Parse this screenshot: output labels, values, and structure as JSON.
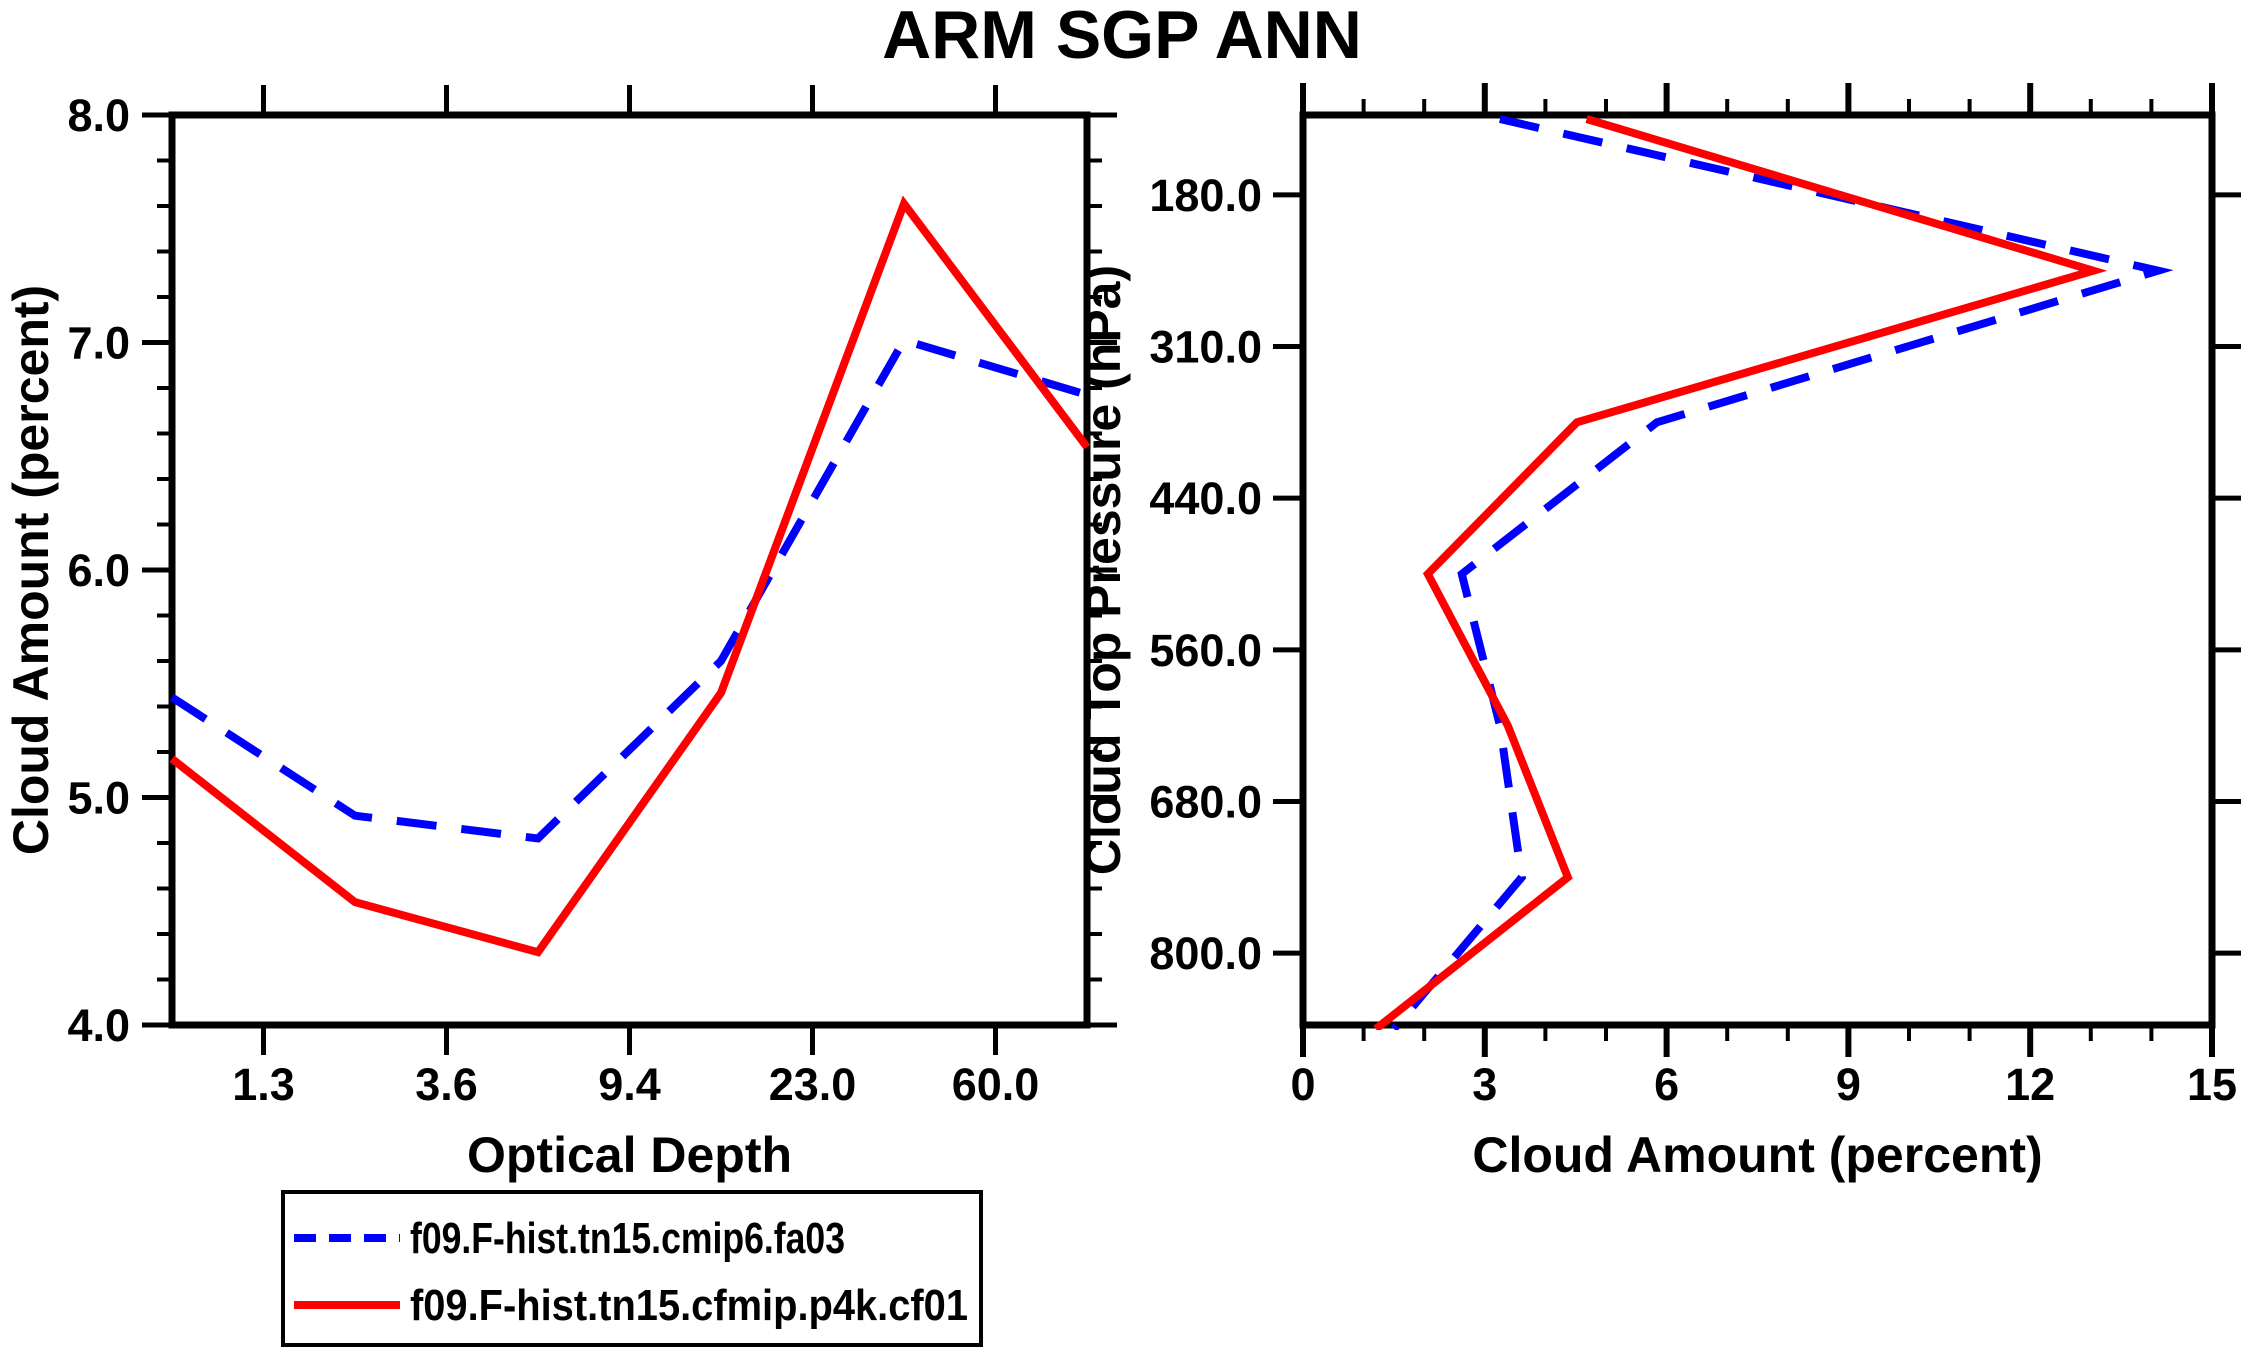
{
  "title": "ARM SGP ANN",
  "colors": {
    "series_blue": "#0000ff",
    "series_red": "#ff0000",
    "axis": "#000000",
    "background": "#ffffff"
  },
  "legend": {
    "entries": [
      {
        "label": "f09.F-hist.tn15.cmip6.fa03",
        "color": "#0000ff",
        "line_style": "dashed"
      },
      {
        "label": "f09.F-hist.tn15.cfmip.p4k.cf01",
        "color": "#ff0000",
        "line_style": "solid"
      }
    ]
  },
  "chart_data": [
    {
      "type": "line",
      "panel": "left",
      "title": "",
      "xlabel": "Optical Depth",
      "ylabel": "Cloud Amount (percent)",
      "x_axis_kind": "equally-spaced bin centers, ticks at bin boundaries",
      "x_boundary_labels": [
        "1.3",
        "3.6",
        "9.4",
        "23.0",
        "60.0"
      ],
      "ylim": [
        4.0,
        8.0
      ],
      "yticks": [
        8.0,
        7.0,
        6.0,
        5.0,
        4.0
      ],
      "ytick_labels": [
        "8.0",
        "7.0",
        "6.0",
        "5.0",
        "4.0"
      ],
      "y_minor_tick_step": 0.2,
      "grid": false,
      "series": [
        {
          "name": "f09.F-hist.tn15.cmip6.fa03",
          "color": "#0000ff",
          "line_style": "dashed",
          "values": [
            5.44,
            4.92,
            4.82,
            5.6,
            7.01,
            6.77
          ]
        },
        {
          "name": "f09.F-hist.tn15.cfmip.p4k.cf01",
          "color": "#ff0000",
          "line_style": "solid",
          "values": [
            5.17,
            4.54,
            4.32,
            5.46,
            7.61,
            6.54
          ]
        }
      ]
    },
    {
      "type": "line",
      "panel": "right",
      "title": "",
      "xlabel": "Cloud Amount (percent)",
      "ylabel": "Cloud Top Pressure (hPa)",
      "y_axis_kind": "equally-spaced bin centers top-to-bottom, ticks at bin boundaries, 7th point clipped at bottom edge",
      "y_boundary_labels": [
        "180.0",
        "310.0",
        "440.0",
        "560.0",
        "680.0",
        "800.0"
      ],
      "xlim": [
        0,
        15
      ],
      "xticks": [
        0,
        3,
        6,
        9,
        12,
        15
      ],
      "xtick_labels": [
        "0",
        "3",
        "6",
        "9",
        "12",
        "15"
      ],
      "x_minor_tick_step": 1,
      "grid": false,
      "series": [
        {
          "name": "f09.F-hist.tn15.cmip6.fa03",
          "color": "#0000ff",
          "line_style": "dashed",
          "values": [
            3.25,
            14.11,
            5.84,
            2.62,
            3.25,
            3.61,
            1.5
          ]
        },
        {
          "name": "f09.F-hist.tn15.cfmip.p4k.cf01",
          "color": "#ff0000",
          "line_style": "solid",
          "values": [
            4.68,
            13.04,
            4.52,
            2.06,
            3.38,
            4.37,
            1.2
          ]
        }
      ]
    }
  ]
}
